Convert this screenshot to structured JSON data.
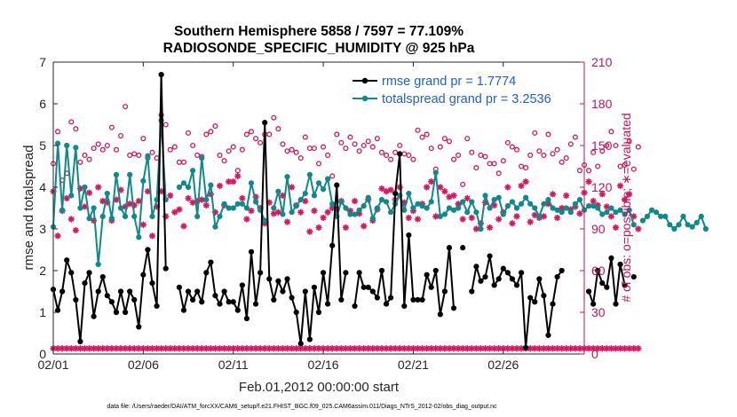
{
  "chart_data": {
    "type": "line",
    "title": "Southern Hemisphere 5858 / 7597 = 77.109%",
    "subtitle": "RADIOSONDE_SPECIFIC_HUMIDITY @ 925 hPa",
    "xlabel": "Feb.01,2012 00:00:00 start",
    "ylabel": "rmse and totalspread",
    "y2label": "# of obs: o=possible; ∗=evaluated",
    "x_tick_labels": [
      "02/01",
      "02/06",
      "02/11",
      "02/16",
      "02/21",
      "02/26"
    ],
    "x_tick_days": [
      0,
      5,
      10,
      15,
      20,
      25
    ],
    "xlim": [
      0,
      29.5
    ],
    "ylim": [
      0,
      7
    ],
    "y_ticks": [
      "0",
      "1",
      "2",
      "3",
      "4",
      "5",
      "6",
      "7"
    ],
    "y2lim": [
      0,
      210
    ],
    "y2_ticks": [
      "0",
      "30",
      "60",
      "90",
      "120",
      "150",
      "180",
      "210"
    ],
    "x_step_days": 0.25,
    "grid": false,
    "legend_position": "top-right",
    "colors": {
      "rmse": "#000000",
      "spread": "#0e8a8a",
      "counts": "#d6175f",
      "legend_text": "#1f5fd6",
      "right_axis": "#c8105e"
    },
    "series": [
      {
        "name": "rmse grand pr = 1.7774",
        "values": [
          1.55,
          1.05,
          1.5,
          2.25,
          1.95,
          1.3,
          0.3,
          1.7,
          1.95,
          0.9,
          1.5,
          1.85,
          1.4,
          1.25,
          1.0,
          1.5,
          1.0,
          1.5,
          1.3,
          0.65,
          1.9,
          2.5,
          1.7,
          1.15,
          6.7,
          2.05,
          null,
          null,
          1.6,
          1.05,
          1.5,
          1.3,
          1.5,
          1.25,
          1.95,
          2.2,
          1.4,
          1.2,
          1.5,
          1.25,
          1.25,
          1.05,
          1.65,
          0.85,
          2.45,
          1.2,
          1.95,
          5.55,
          1.8,
          1.3,
          1.75,
          1.5,
          1.8,
          1.35,
          1.0,
          0.25,
          1.5,
          0.35,
          1.6,
          1.0,
          1.95,
          1.2,
          2.6,
          4.05,
          1.3,
          1.95,
          null,
          1.15,
          1.95,
          1.6,
          1.6,
          1.5,
          1.35,
          2.0,
          1.2,
          1.35,
          3.85,
          4.8,
          1.15,
          2.85,
          1.3,
          1.3,
          1.3,
          1.9,
          1.6,
          2.0,
          0.95,
          1.5,
          2.55,
          1.1,
          null,
          2.55,
          null,
          1.5,
          2.1,
          1.75,
          1.85,
          2.35,
          1.65,
          1.8,
          2.05,
          1.95,
          1.8,
          1.65,
          1.95,
          0.15,
          1.35,
          1.25,
          1.8,
          1.4,
          0.45,
          1.2,
          1.85,
          2.0,
          null,
          null,
          null,
          null,
          null,
          1.5,
          1.2,
          2.0,
          1.7,
          1.6,
          2.3,
          1.2,
          2.15,
          1.65,
          null,
          1.85
        ]
      },
      {
        "name": "totalspread grand pr = 3.2536",
        "values": [
          3.05,
          5.05,
          3.45,
          5.0,
          3.8,
          4.95,
          3.5,
          4.0,
          3.25,
          3.5,
          2.15,
          3.3,
          3.85,
          3.25,
          4.3,
          3.5,
          3.3,
          4.3,
          3.3,
          2.8,
          4.15,
          4.75,
          3.3,
          3.7,
          5.6,
          3.7,
          null,
          null,
          4.0,
          4.1,
          4.0,
          4.4,
          3.3,
          4.7,
          3.7,
          4.05,
          3.05,
          3.3,
          3.6,
          3.5,
          3.5,
          3.6,
          3.6,
          3.5,
          4.1,
          3.65,
          3.45,
          3.2,
          null,
          3.5,
          3.9,
          3.35,
          4.25,
          3.4,
          3.55,
          3.7,
          3.85,
          4.3,
          3.8,
          4.1,
          3.95,
          4.2,
          3.6,
          3.3,
          3.65,
          3.5,
          3.35,
          3.35,
          3.45,
          3.55,
          3.75,
          3.25,
          3.5,
          3.7,
          3.65,
          3.4,
          3.6,
          3.8,
          3.45,
          3.85,
          3.5,
          3.6,
          3.55,
          3.5,
          3.65,
          4.35,
          3.3,
          3.35,
          3.5,
          3.45,
          3.5,
          3.65,
          3.4,
          3.65,
          3.4,
          3.0,
          3.8,
          3.5,
          3.7,
          3.75,
          3.35,
          3.55,
          3.65,
          3.5,
          3.6,
          3.75,
          3.6,
          3.5,
          3.3,
          3.6,
          3.7,
          3.5,
          3.45,
          3.4,
          3.5,
          3.4,
          3.6,
          3.7,
          3.45,
          3.55,
          3.55,
          3.5,
          3.35,
          3.4,
          3.5,
          3.4,
          3.45,
          3.35,
          3.45,
          3.1,
          null,
          3.2,
          3.3,
          3.45,
          3.4,
          3.3,
          3.3,
          3.1,
          3.0,
          3.1,
          3.3,
          3.1,
          3.05,
          3.15,
          3.3,
          3.0
        ]
      },
      {
        "name": "possible",
        "axis": "right",
        "values": [
          137,
          160,
          125,
          130,
          167,
          162,
          138,
          143,
          140,
          148,
          151,
          147,
          150,
          163,
          147,
          157,
          178,
          143,
          144,
          143,
          155,
          141,
          145,
          141,
          172,
          165,
          147,
          149,
          138,
          138,
          159,
          150,
          143,
          142,
          158,
          160,
          164,
          143,
          139,
          146,
          149,
          132,
          147,
          158,
          160,
          155,
          152,
          158,
          158,
          170,
          162,
          151,
          146,
          147,
          145,
          141,
          156,
          148,
          148,
          137,
          149,
          143,
          128,
          158,
          152,
          148,
          156,
          151,
          146,
          150,
          153,
          149,
          155,
          145,
          143,
          140,
          145,
          150,
          144,
          143,
          140,
          161,
          156,
          158,
          148,
          133,
          149,
          155,
          153,
          140,
          143,
          122,
          155,
          145,
          134,
          143,
          142,
          137,
          137,
          130,
          139,
          152,
          149,
          147,
          135,
          134,
          143,
          159,
          146,
          143,
          158,
          144,
          147,
          138,
          141,
          151,
          156,
          132,
          136,
          132,
          145,
          135,
          146,
          150,
          160,
          150,
          135,
          136,
          153,
          133,
          149
        ]
      },
      {
        "name": "evaluated",
        "axis": "right",
        "values": [
          4,
          4,
          4,
          4,
          4,
          4,
          4,
          4,
          4,
          4,
          4,
          4,
          4,
          4,
          4,
          4,
          4,
          4,
          4,
          4,
          4,
          4,
          4,
          4,
          4,
          4,
          4,
          4,
          4,
          4,
          4,
          4,
          4,
          4,
          4,
          4,
          4,
          4,
          4,
          4,
          4,
          4,
          4,
          4,
          4,
          4,
          4,
          4,
          4,
          4,
          4,
          4,
          4,
          4,
          4,
          4,
          4,
          4,
          4,
          4,
          4,
          4,
          4,
          4,
          4,
          4,
          4,
          4,
          4,
          4,
          4,
          4,
          4,
          4,
          4,
          4,
          4,
          4,
          4,
          4,
          4,
          4,
          4,
          4,
          4,
          4,
          4,
          4,
          4,
          4,
          4,
          4,
          4,
          4,
          4,
          4,
          4,
          4,
          4,
          4,
          4,
          4,
          4,
          4,
          4,
          4,
          4,
          4,
          4,
          4,
          4,
          4,
          4,
          4,
          4,
          4,
          4,
          4,
          4,
          4,
          4,
          4,
          4,
          4,
          4,
          4,
          4,
          4,
          4,
          4,
          4
        ]
      },
      {
        "name": "evaluated-upper",
        "axis": "right",
        "values": [
          117,
          85,
          103,
          112,
          97,
          89,
          119,
          106,
          116,
          96,
          120,
          110,
          109,
          96,
          111,
          118,
          106,
          108,
          107,
          110,
          93,
          117,
          85,
          106,
          117,
          99,
          114,
          102,
          104,
          92,
          112,
          109,
          110,
          111,
          107,
          115,
          102,
          121,
          107,
          124,
          124,
          128,
          112,
          97,
          103,
          113,
          105,
          94,
          109,
          101,
          102,
          114,
          95,
          120,
          107,
          102,
          110,
          88,
          103,
          91,
          98,
          102,
          105,
          104,
          110,
          91,
          103,
          110,
          101,
          92,
          111,
          96,
          104,
          119,
          117,
          118,
          111,
          120,
          109,
          98,
          103,
          97,
          108,
          120,
          124,
          99,
          120,
          117,
          113,
          114,
          108,
          97,
          112,
          98,
          90,
          94,
          109,
          91,
          107,
          97,
          102,
          120,
          94,
          99,
          121,
          124,
          95,
          100,
          98,
          99,
          108,
          115,
          98,
          105,
          114,
          104,
          106,
          101,
          116,
          124,
          110,
          107,
          115,
          106,
          99,
          91,
          121,
          111,
          115,
          99,
          90
        ]
      }
    ],
    "legend": [
      "rmse grand pr = 1.7774",
      "totalspread grand pr = 3.2536"
    ]
  },
  "footer": "data file: /Users/raeder/DAI/ATM_forcXX/CAM6_setup/f.e21.FHIST_BGC.f09_025.CAM6assim.011/Diags_NTrS_2012-02/obs_diag_output.nc"
}
